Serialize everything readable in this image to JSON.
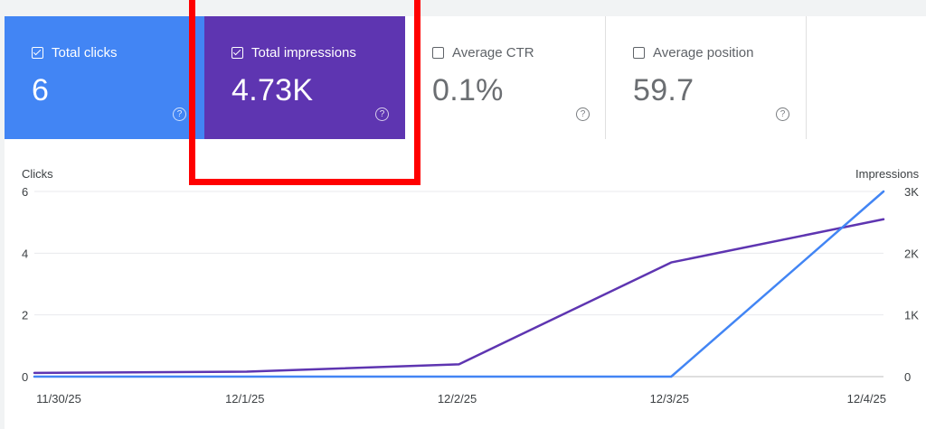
{
  "cards": [
    {
      "id": "clicks",
      "label": "Total clicks",
      "value": "6",
      "checked": true,
      "color": "#4285f4"
    },
    {
      "id": "impressions",
      "label": "Total impressions",
      "value": "4.73K",
      "checked": true,
      "color": "#5e35b1"
    },
    {
      "id": "ctr",
      "label": "Average CTR",
      "value": "0.1%",
      "checked": false
    },
    {
      "id": "position",
      "label": "Average position",
      "value": "59.7",
      "checked": false
    }
  ],
  "help_glyph": "?",
  "highlight_color": "#ff0000",
  "chart_data": {
    "type": "line",
    "x": [
      "11/30/25",
      "12/1/25",
      "12/2/25",
      "12/3/25",
      "12/4/25"
    ],
    "left_axis": {
      "label": "Clicks",
      "ticks": [
        "0",
        "2",
        "4",
        "6"
      ],
      "range": [
        0,
        6
      ]
    },
    "right_axis": {
      "label": "Impressions",
      "ticks": [
        "0",
        "1K",
        "2K",
        "3K"
      ],
      "range": [
        0,
        3000
      ]
    },
    "series": [
      {
        "name": "Clicks",
        "axis": "left",
        "color": "#4285f4",
        "values": [
          0,
          0,
          0,
          0,
          6
        ]
      },
      {
        "name": "Impressions",
        "axis": "right",
        "color": "#5e35b1",
        "values": [
          60,
          80,
          200,
          1850,
          2550
        ]
      }
    ],
    "grid": true,
    "legend": "none"
  }
}
